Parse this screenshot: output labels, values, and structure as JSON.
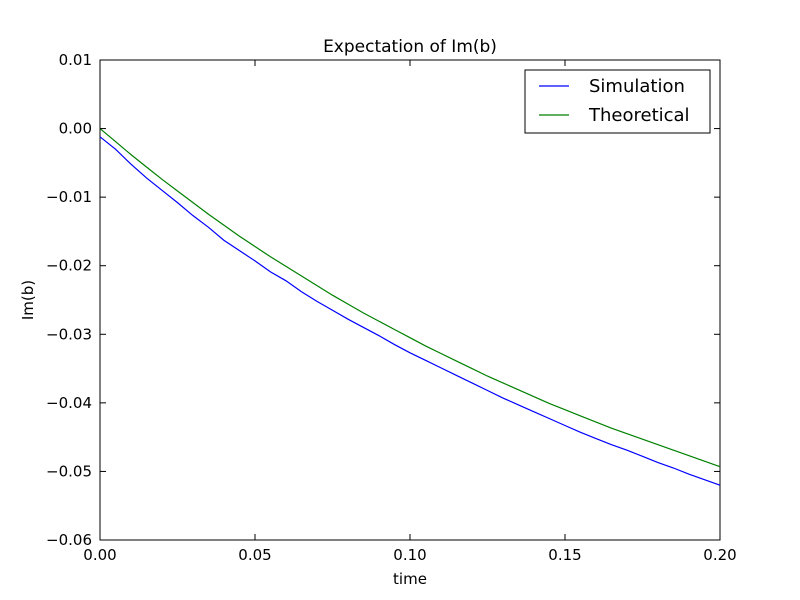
{
  "chart_data": {
    "type": "line",
    "title": "Expectation of Im(b)",
    "xlabel": "time",
    "ylabel": "Im(b)",
    "xlim": [
      0.0,
      0.2
    ],
    "ylim": [
      -0.06,
      0.01
    ],
    "x_ticks": [
      "0.00",
      "0.05",
      "0.10",
      "0.15",
      "0.20"
    ],
    "y_ticks": [
      "0.01",
      "0.00",
      "−0.01",
      "−0.02",
      "−0.03",
      "−0.04",
      "−0.05",
      "−0.06"
    ],
    "grid": false,
    "legend_position": "top-right",
    "series": [
      {
        "name": "Simulation",
        "color": "#0000ff",
        "x": [
          0.0,
          0.005,
          0.01,
          0.015,
          0.02,
          0.025,
          0.03,
          0.035,
          0.04,
          0.045,
          0.05,
          0.055,
          0.06,
          0.065,
          0.07,
          0.075,
          0.08,
          0.085,
          0.09,
          0.095,
          0.1,
          0.105,
          0.11,
          0.115,
          0.12,
          0.125,
          0.13,
          0.135,
          0.14,
          0.145,
          0.15,
          0.155,
          0.16,
          0.165,
          0.17,
          0.175,
          0.18,
          0.185,
          0.19,
          0.195,
          0.2
        ],
        "y": [
          -0.0012,
          -0.003,
          -0.0052,
          -0.0072,
          -0.009,
          -0.0108,
          -0.0127,
          -0.0144,
          -0.0163,
          -0.0178,
          -0.0193,
          -0.0209,
          -0.0222,
          -0.0238,
          -0.0252,
          -0.0265,
          -0.0278,
          -0.029,
          -0.0302,
          -0.0315,
          -0.0327,
          -0.0338,
          -0.0349,
          -0.036,
          -0.0371,
          -0.0382,
          -0.0393,
          -0.0403,
          -0.0413,
          -0.0423,
          -0.0433,
          -0.0443,
          -0.0452,
          -0.0461,
          -0.0469,
          -0.0478,
          -0.0487,
          -0.0495,
          -0.0504,
          -0.0512,
          -0.052
        ]
      },
      {
        "name": "Theoretical",
        "color": "#008000",
        "x": [
          0.0,
          0.005,
          0.01,
          0.015,
          0.02,
          0.025,
          0.03,
          0.035,
          0.04,
          0.045,
          0.05,
          0.055,
          0.06,
          0.065,
          0.07,
          0.075,
          0.08,
          0.085,
          0.09,
          0.095,
          0.1,
          0.105,
          0.11,
          0.115,
          0.12,
          0.125,
          0.13,
          0.135,
          0.14,
          0.145,
          0.15,
          0.155,
          0.16,
          0.165,
          0.17,
          0.175,
          0.18,
          0.185,
          0.19,
          0.195,
          0.2
        ],
        "y": [
          0.0,
          -0.0019,
          -0.0038,
          -0.0056,
          -0.0074,
          -0.0091,
          -0.0108,
          -0.0125,
          -0.0141,
          -0.0157,
          -0.0172,
          -0.0187,
          -0.0201,
          -0.0215,
          -0.0229,
          -0.0243,
          -0.0256,
          -0.0269,
          -0.0281,
          -0.0293,
          -0.0305,
          -0.0317,
          -0.0328,
          -0.0339,
          -0.035,
          -0.0361,
          -0.0371,
          -0.0381,
          -0.0391,
          -0.0401,
          -0.041,
          -0.0419,
          -0.0428,
          -0.0437,
          -0.0445,
          -0.0453,
          -0.0461,
          -0.0469,
          -0.0477,
          -0.0485,
          -0.0493
        ]
      }
    ]
  }
}
